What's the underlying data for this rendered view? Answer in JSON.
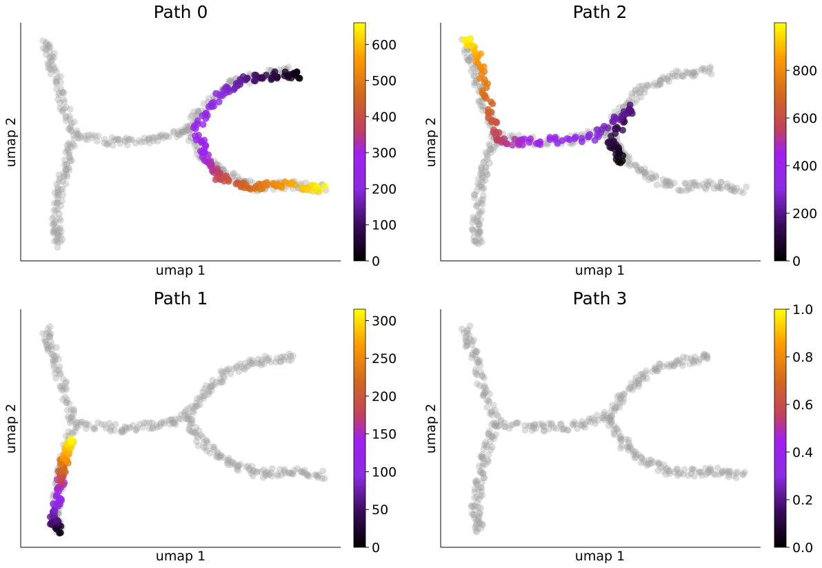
{
  "colors": {
    "background_points": "#a0a0a0",
    "colormap": "gnuplot",
    "colormap_stops": [
      "#000000",
      "#8a2be2",
      "#9b30ff",
      "#d2691e",
      "#ff8c00",
      "#ffff00"
    ]
  },
  "chart_data": [
    {
      "type": "scatter",
      "title": "Path 0",
      "xlabel": "umap 1",
      "ylabel": "umap 2",
      "colorbar": {
        "min": 0,
        "max": 660,
        "ticks": [
          0,
          100,
          200,
          300,
          400,
          500,
          600
        ]
      },
      "highlight": "upper-right and lower-right branches",
      "highlight_points": [
        [
          0.88,
          0.78,
          0
        ],
        [
          0.8,
          0.78,
          60
        ],
        [
          0.7,
          0.76,
          130
        ],
        [
          0.62,
          0.7,
          200
        ],
        [
          0.55,
          0.55,
          250
        ],
        [
          0.58,
          0.42,
          300
        ],
        [
          0.62,
          0.35,
          380
        ],
        [
          0.72,
          0.31,
          460
        ],
        [
          0.82,
          0.32,
          540
        ],
        [
          0.95,
          0.3,
          660
        ]
      ]
    },
    {
      "type": "scatter",
      "title": "Path 2",
      "xlabel": "umap 1",
      "ylabel": "umap 2",
      "colorbar": {
        "min": 0,
        "max": 1000,
        "ticks": [
          0,
          200,
          400,
          600,
          800
        ]
      },
      "highlight": "center junction to top-left branch",
      "highlight_points": [
        [
          0.57,
          0.42,
          0
        ],
        [
          0.53,
          0.5,
          100
        ],
        [
          0.6,
          0.65,
          180
        ],
        [
          0.48,
          0.52,
          300
        ],
        [
          0.3,
          0.5,
          420
        ],
        [
          0.18,
          0.5,
          540
        ],
        [
          0.15,
          0.65,
          680
        ],
        [
          0.12,
          0.85,
          820
        ],
        [
          0.08,
          0.94,
          1000
        ]
      ]
    },
    {
      "type": "scatter",
      "title": "Path 1",
      "xlabel": "umap 1",
      "ylabel": "umap 2",
      "colorbar": {
        "min": 0,
        "max": 315,
        "ticks": [
          0,
          50,
          100,
          150,
          200,
          250,
          300
        ]
      },
      "highlight": "lower-left branch",
      "highlight_points": [
        [
          0.12,
          0.07,
          0
        ],
        [
          0.1,
          0.12,
          60
        ],
        [
          0.12,
          0.22,
          120
        ],
        [
          0.13,
          0.32,
          200
        ],
        [
          0.14,
          0.38,
          260
        ],
        [
          0.16,
          0.45,
          315
        ]
      ]
    },
    {
      "type": "scatter",
      "title": "Path 3",
      "xlabel": "umap 1",
      "ylabel": "umap 2",
      "colorbar": {
        "min": 0.0,
        "max": 1.0,
        "ticks": [
          "0.0",
          "0.2",
          "0.4",
          "0.6",
          "0.8",
          "1.0"
        ]
      },
      "highlight": "none"
    }
  ]
}
